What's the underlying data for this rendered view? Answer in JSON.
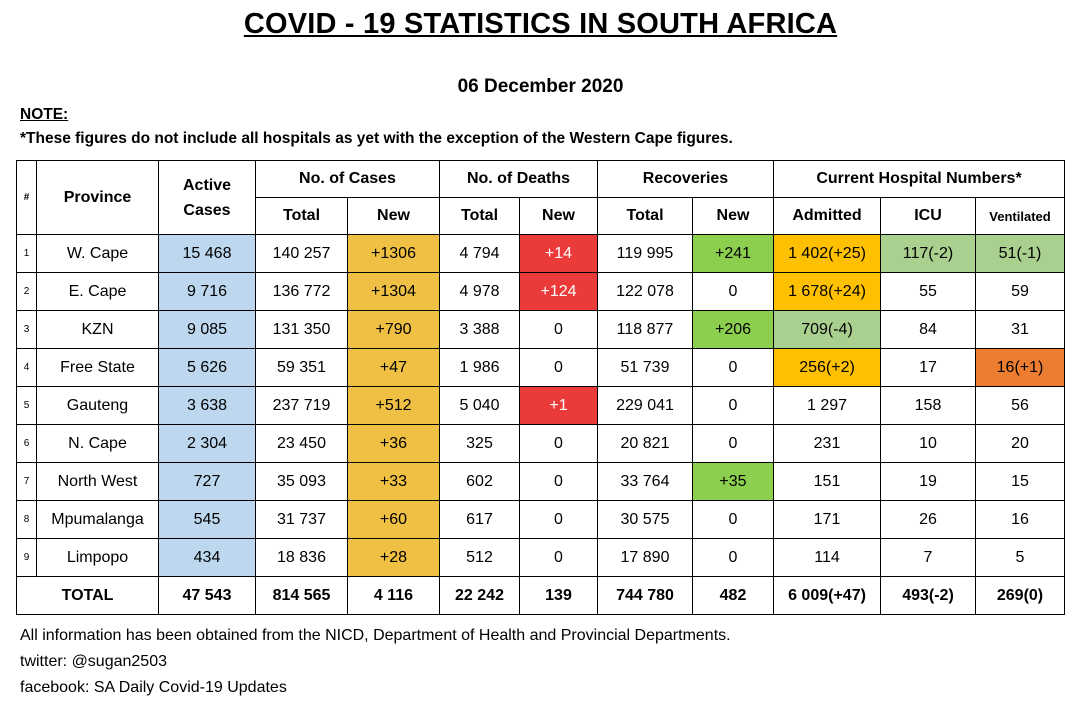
{
  "title": "COVID - 19 STATISTICS IN SOUTH AFRICA",
  "date": "06 December 2020",
  "note_heading": "NOTE:",
  "note_text": "*These figures do not include all hospitals as yet with the exception of the Western Cape figures.",
  "headers": {
    "num": "#",
    "province": "Province",
    "active": "Active Cases",
    "cases": "No. of Cases",
    "deaths": "No. of Deaths",
    "recoveries": "Recoveries",
    "hospital": "Current Hospital Numbers*",
    "total": "Total",
    "new": "New",
    "admitted": "Admitted",
    "icu": "ICU",
    "ventilated": "Ventilated"
  },
  "rows": [
    {
      "n": "1",
      "province": "W. Cape",
      "active": "15 468",
      "cases_total": "140 257",
      "cases_new": "+1306",
      "deaths_total": "4 794",
      "deaths_new": "+14",
      "rec_total": "119 995",
      "rec_new": "+241",
      "admitted": "1 402(+25)",
      "icu": "117(-2)",
      "vent": "51(-1)"
    },
    {
      "n": "2",
      "province": "E. Cape",
      "active": "9 716",
      "cases_total": "136 772",
      "cases_new": "+1304",
      "deaths_total": "4 978",
      "deaths_new": "+124",
      "rec_total": "122 078",
      "rec_new": "0",
      "admitted": "1 678(+24)",
      "icu": "55",
      "vent": "59"
    },
    {
      "n": "3",
      "province": "KZN",
      "active": "9 085",
      "cases_total": "131 350",
      "cases_new": "+790",
      "deaths_total": "3 388",
      "deaths_new": "0",
      "rec_total": "118 877",
      "rec_new": "+206",
      "admitted": "709(-4)",
      "icu": "84",
      "vent": "31"
    },
    {
      "n": "4",
      "province": "Free State",
      "active": "5 626",
      "cases_total": "59 351",
      "cases_new": "+47",
      "deaths_total": "1 986",
      "deaths_new": "0",
      "rec_total": "51 739",
      "rec_new": "0",
      "admitted": "256(+2)",
      "icu": "17",
      "vent": "16(+1)"
    },
    {
      "n": "5",
      "province": "Gauteng",
      "active": "3 638",
      "cases_total": "237 719",
      "cases_new": "+512",
      "deaths_total": "5 040",
      "deaths_new": "+1",
      "rec_total": "229 041",
      "rec_new": "0",
      "admitted": "1 297",
      "icu": "158",
      "vent": "56"
    },
    {
      "n": "6",
      "province": "N. Cape",
      "active": "2 304",
      "cases_total": "23 450",
      "cases_new": "+36",
      "deaths_total": "325",
      "deaths_new": "0",
      "rec_total": "20 821",
      "rec_new": "0",
      "admitted": "231",
      "icu": "10",
      "vent": "20"
    },
    {
      "n": "7",
      "province": "North West",
      "active": "727",
      "cases_total": "35 093",
      "cases_new": "+33",
      "deaths_total": "602",
      "deaths_new": "0",
      "rec_total": "33 764",
      "rec_new": "+35",
      "admitted": "151",
      "icu": "19",
      "vent": "15"
    },
    {
      "n": "8",
      "province": "Mpumalanga",
      "active": "545",
      "cases_total": "31 737",
      "cases_new": "+60",
      "deaths_total": "617",
      "deaths_new": "0",
      "rec_total": "30 575",
      "rec_new": "0",
      "admitted": "171",
      "icu": "26",
      "vent": "16"
    },
    {
      "n": "9",
      "province": "Limpopo",
      "active": "434",
      "cases_total": "18 836",
      "cases_new": "+28",
      "deaths_total": "512",
      "deaths_new": "0",
      "rec_total": "17 890",
      "rec_new": "0",
      "admitted": "114",
      "icu": "7",
      "vent": "5"
    }
  ],
  "total": {
    "label": "TOTAL",
    "active": "47 543",
    "cases_total": "814 565",
    "cases_new": "4 116",
    "deaths_total": "22 242",
    "deaths_new": "139",
    "rec_total": "744 780",
    "rec_new": "482",
    "admitted": "6 009(+47)",
    "icu": "493(-2)",
    "vent": "269(0)"
  },
  "footer": {
    "source": "All information has been obtained from the NICD, Department of Health and Provincial Departments.",
    "twitter": "twitter: @sugan2503",
    "facebook": "facebook: SA Daily Covid-19 Updates"
  },
  "colors": {
    "active_blue": "#bdd7ee",
    "new_cases_orange": "#f0c045",
    "deaths_red": "#ea3a3a",
    "recoveries_green": "#8ccf4f",
    "admitted_amber": "#ffc000",
    "light_green": "#a9d08e",
    "ventilated_orange": "#ed7d31"
  }
}
